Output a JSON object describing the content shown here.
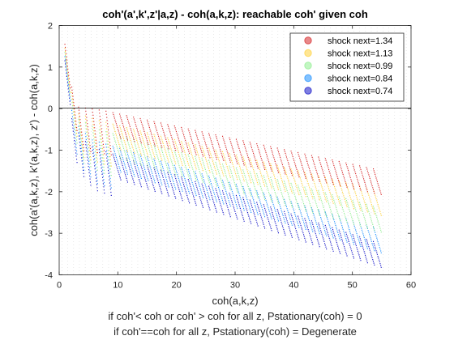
{
  "chart_data": {
    "type": "scatter",
    "title": "coh'(a',k',z'|a,z) - coh(a,k,z): reachable coh' given coh",
    "xlabel": "coh(a,k,z)",
    "xlabel_notes": [
      "if coh'< coh or coh' > coh for all z, Pstationary(coh) = 0",
      "if coh'==coh for all z, Pstationary(coh) = Degenerate"
    ],
    "ylabel": "coh(a'(a,k,z), k'(a,k,z), z') - coh(a,k,z)",
    "xlim": [
      0,
      60
    ],
    "ylim": [
      -4,
      2
    ],
    "xticks": [
      "0",
      "10",
      "20",
      "30",
      "40",
      "50",
      "60"
    ],
    "yticks": [
      "-4",
      "-3",
      "-2",
      "-1",
      "0",
      "1",
      "2"
    ],
    "reference_line_y": 0,
    "grid": false,
    "legend_position": "top-right",
    "series": [
      {
        "name": "shock next=1.34",
        "color": "#d62728",
        "start": [
          [
            0.9,
            1.55
          ],
          [
            2.6,
            0.05
          ],
          [
            7.5,
            -0.05
          ]
        ],
        "end": [
          [
            53.5,
            -1.45
          ]
        ]
      },
      {
        "name": "shock next=1.13",
        "color": "#ffd23c",
        "start": [
          [
            0.9,
            1.45
          ],
          [
            2.6,
            -0.1
          ],
          [
            7.0,
            -0.3
          ]
        ],
        "end": [
          [
            53.5,
            -1.95
          ]
        ]
      },
      {
        "name": "shock next=0.99",
        "color": "#90ee90",
        "start": [
          [
            0.9,
            1.35
          ],
          [
            2.5,
            -0.2
          ],
          [
            6.5,
            -0.5
          ]
        ],
        "end": [
          [
            53.5,
            -2.35
          ]
        ]
      },
      {
        "name": "shock next=0.84",
        "color": "#1e90ff",
        "start": [
          [
            0.9,
            1.25
          ],
          [
            2.3,
            -0.3
          ],
          [
            5.5,
            -0.75
          ]
        ],
        "end": [
          [
            53.5,
            -2.85
          ]
        ]
      },
      {
        "name": "shock next=0.74",
        "color": "#1515c8",
        "start": [
          [
            0.9,
            1.15
          ],
          [
            2.2,
            -0.4
          ],
          [
            5.0,
            -0.9
          ]
        ],
        "end": [
          [
            53.5,
            -3.2
          ]
        ]
      }
    ]
  }
}
